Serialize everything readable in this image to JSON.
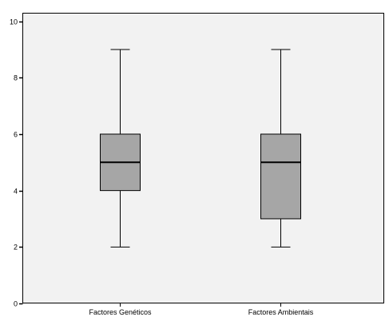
{
  "colors": {
    "plot_background": "#f2f2f2",
    "box_fill": "#a6a6a6",
    "line": "#000000"
  },
  "chart_data": {
    "type": "boxplot",
    "title": "",
    "xlabel": "",
    "ylabel": "",
    "ylim": [
      0,
      10.3
    ],
    "y_ticks": [
      0,
      2,
      4,
      6,
      8,
      10
    ],
    "y_tick_labels": [
      "0",
      "2",
      "4",
      "6",
      "8",
      "10"
    ],
    "grid": false,
    "legend": "none",
    "categories": [
      "Factores Genéticos",
      "Factores Ambientais"
    ],
    "boxes": [
      {
        "category": "Factores Genéticos",
        "min": 2,
        "q1": 4,
        "median": 5,
        "q3": 6,
        "max": 9
      },
      {
        "category": "Factores Ambientais",
        "min": 2,
        "q1": 3,
        "median": 5,
        "q3": 6,
        "max": 9
      }
    ]
  }
}
